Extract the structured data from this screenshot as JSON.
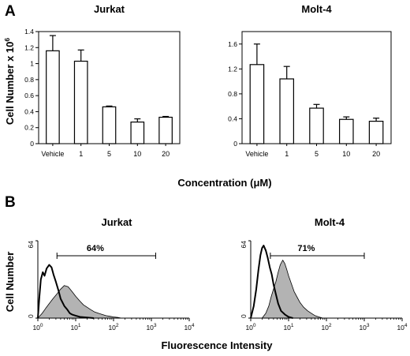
{
  "panel_labels": {
    "a": "A",
    "b": "B"
  },
  "panel_a": {
    "ylabel_main": "Cell Number x 10",
    "ylabel_sup": "6",
    "xlabel_main": "Concentration (",
    "xlabel_unit": "μM",
    "xlabel_close": ")"
  },
  "panel_b": {
    "ylabel": "Cell Number",
    "xlabel": "Fluorescence Intensity"
  },
  "chart_data": [
    {
      "type": "bar",
      "title": "Jurkat",
      "ylabel": "Cell Number x 10^6",
      "xlabel": "Concentration (μM)",
      "categories": [
        "Vehicle",
        "1",
        "5",
        "10",
        "20"
      ],
      "values": [
        1.16,
        1.03,
        0.46,
        0.27,
        0.33
      ],
      "errors": [
        0.19,
        0.14,
        0.01,
        0.04,
        0.01
      ],
      "ylim": [
        0,
        1.4
      ],
      "yticks": [
        "0",
        "0.2",
        "0.4",
        "0.6",
        "0.8",
        "1",
        "1.2",
        "1.4"
      ],
      "ytick_values": [
        0,
        0.2,
        0.4,
        0.6,
        0.8,
        1.0,
        1.2,
        1.4
      ]
    },
    {
      "type": "bar",
      "title": "Molt-4",
      "xlabel": "Concentration (μM)",
      "categories": [
        "Vehicle",
        "1",
        "5",
        "10",
        "20"
      ],
      "values": [
        1.27,
        1.04,
        0.57,
        0.39,
        0.36
      ],
      "errors": [
        0.33,
        0.2,
        0.06,
        0.04,
        0.05
      ],
      "ylim": [
        0,
        1.8
      ],
      "yticks": [
        "0",
        "0.4",
        "0.8",
        "1.2",
        "1.6"
      ],
      "ytick_values": [
        0,
        0.4,
        0.8,
        1.2,
        1.6
      ]
    },
    {
      "type": "area",
      "title": "Jurkat",
      "ylabel": "Cell Number",
      "xlabel": "Fluorescence Intensity",
      "xscale": "log",
      "xlim": [
        1,
        10000
      ],
      "ylim": [
        0,
        64
      ],
      "ytick_labels": [
        "0",
        "64"
      ],
      "xtick_labels": [
        {
          "base": "10",
          "exp": "0"
        },
        {
          "base": "10",
          "exp": "1"
        },
        {
          "base": "10",
          "exp": "2"
        },
        {
          "base": "10",
          "exp": "3"
        },
        {
          "base": "10",
          "exp": "4"
        }
      ],
      "gate": {
        "label": "64%",
        "x": [
          3.2,
          1300
        ]
      },
      "series": [
        {
          "fill": "#b3b3b3",
          "x": [
            1.0,
            1.3,
            1.6,
            2.0,
            2.5,
            3.2,
            4.0,
            5.0,
            6.3,
            8.0,
            10,
            13,
            16,
            20,
            25,
            32,
            40,
            50,
            63,
            80,
            100,
            130,
            160
          ],
          "y": [
            0,
            4,
            8,
            12,
            16,
            20,
            24,
            27,
            26,
            22,
            18,
            14,
            11,
            9,
            7,
            5,
            4,
            3,
            2,
            1.5,
            1,
            0.5,
            0
          ]
        },
        {
          "fill": "none",
          "x": [
            1.0,
            1.1,
            1.2,
            1.35,
            1.5,
            1.7,
            2.0,
            2.3,
            2.6,
            3.0,
            3.5,
            4.0,
            5.0,
            6.0,
            7.0,
            8.0,
            10,
            13,
            20,
            30
          ],
          "y": [
            0,
            18,
            32,
            38,
            35,
            41,
            44,
            42,
            36,
            30,
            23,
            16,
            10,
            7,
            4,
            3,
            2,
            1,
            0.5,
            0
          ]
        }
      ]
    },
    {
      "type": "area",
      "title": "Molt-4",
      "xlabel": "Fluorescence Intensity",
      "xscale": "log",
      "xlim": [
        1,
        10000
      ],
      "ylim": [
        0,
        64
      ],
      "ytick_labels": [
        "0",
        "64"
      ],
      "xtick_labels": [
        {
          "base": "10",
          "exp": "0"
        },
        {
          "base": "10",
          "exp": "1"
        },
        {
          "base": "10",
          "exp": "2"
        },
        {
          "base": "10",
          "exp": "3"
        },
        {
          "base": "10",
          "exp": "4"
        }
      ],
      "gate": {
        "label": "71%",
        "x": [
          3.3,
          1000
        ]
      },
      "series": [
        {
          "fill": "#b3b3b3",
          "x": [
            2.0,
            2.5,
            3.0,
            3.5,
            4.0,
            4.6,
            5.3,
            6.0,
            7.0,
            8.0,
            9.0,
            10,
            12,
            14,
            17,
            20,
            25,
            32,
            40,
            50,
            63,
            80
          ],
          "y": [
            0,
            4,
            10,
            18,
            24,
            30,
            38,
            44,
            48,
            45,
            40,
            35,
            28,
            22,
            17,
            13,
            9,
            6,
            4,
            2,
            1,
            0
          ]
        },
        {
          "fill": "none",
          "x": [
            1.0,
            1.2,
            1.4,
            1.6,
            1.8,
            2.0,
            2.2,
            2.5,
            2.8,
            3.2,
            3.6,
            4.0,
            4.6,
            5.3,
            6.3,
            8.0,
            10,
            13
          ],
          "y": [
            0,
            10,
            24,
            40,
            52,
            58,
            60,
            56,
            50,
            42,
            36,
            28,
            20,
            12,
            6,
            3,
            1,
            0
          ]
        }
      ]
    }
  ]
}
